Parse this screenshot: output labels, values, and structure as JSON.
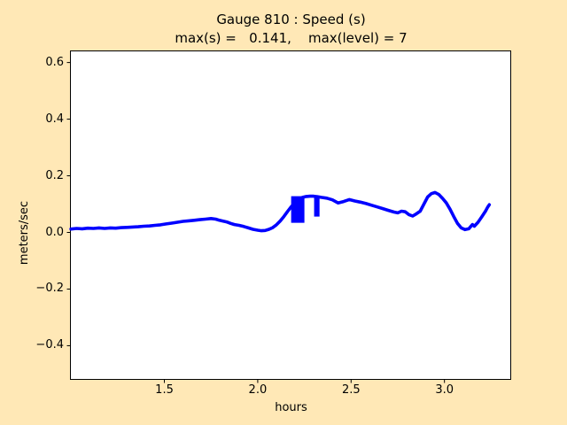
{
  "colors": {
    "figure_background": "#ffe8b6",
    "plot_background": "#ffffff",
    "line": "#0000ff",
    "frame": "#000000",
    "text": "#000000"
  },
  "chart_data": {
    "type": "line",
    "title": "Gauge 810 : Speed (s)",
    "subtitle": "max(s) =   0.141,    max(level) = 7",
    "max_s": 0.141,
    "max_level": 7,
    "xlabel": "hours",
    "ylabel": "meters/sec",
    "xlim": [
      0.997,
      3.355
    ],
    "ylim": [
      -0.519,
      0.641
    ],
    "xticks": [
      1.5,
      2.0,
      2.5,
      3.0
    ],
    "xtick_labels": [
      "1.5",
      "2.0",
      "2.5",
      "3.0"
    ],
    "yticks": [
      0.6,
      0.4,
      0.2,
      0.0,
      -0.2,
      -0.4
    ],
    "ytick_labels": [
      "0.6",
      "0.4",
      "0.2",
      "0.0",
      "−0.2",
      "−0.4"
    ],
    "grid": false,
    "legend": null,
    "line_color": "#0000ff",
    "plot_background": "#ffffff",
    "series": [
      {
        "name": "speed",
        "points": [
          [
            1.0,
            0.012
          ],
          [
            1.03,
            0.014
          ],
          [
            1.06,
            0.013
          ],
          [
            1.09,
            0.015
          ],
          [
            1.12,
            0.014
          ],
          [
            1.15,
            0.016
          ],
          [
            1.18,
            0.014
          ],
          [
            1.21,
            0.016
          ],
          [
            1.24,
            0.015
          ],
          [
            1.27,
            0.017
          ],
          [
            1.3,
            0.018
          ],
          [
            1.33,
            0.019
          ],
          [
            1.36,
            0.02
          ],
          [
            1.39,
            0.022
          ],
          [
            1.42,
            0.023
          ],
          [
            1.45,
            0.025
          ],
          [
            1.48,
            0.027
          ],
          [
            1.51,
            0.03
          ],
          [
            1.54,
            0.033
          ],
          [
            1.57,
            0.036
          ],
          [
            1.6,
            0.039
          ],
          [
            1.63,
            0.041
          ],
          [
            1.66,
            0.043
          ],
          [
            1.69,
            0.045
          ],
          [
            1.72,
            0.047
          ],
          [
            1.75,
            0.049
          ],
          [
            1.775,
            0.047
          ],
          [
            1.795,
            0.043
          ],
          [
            1.815,
            0.04
          ],
          [
            1.835,
            0.037
          ],
          [
            1.855,
            0.032
          ],
          [
            1.875,
            0.028
          ],
          [
            1.9,
            0.025
          ],
          [
            1.925,
            0.021
          ],
          [
            1.95,
            0.016
          ],
          [
            1.975,
            0.011
          ],
          [
            2.0,
            0.008
          ],
          [
            2.02,
            0.006
          ],
          [
            2.04,
            0.007
          ],
          [
            2.06,
            0.011
          ],
          [
            2.08,
            0.017
          ],
          [
            2.1,
            0.027
          ],
          [
            2.12,
            0.04
          ],
          [
            2.14,
            0.056
          ],
          [
            2.16,
            0.074
          ],
          [
            2.18,
            0.091
          ],
          [
            2.2,
            0.106
          ],
          [
            2.22,
            0.117
          ],
          [
            2.24,
            0.124
          ],
          [
            2.26,
            0.127
          ],
          [
            2.28,
            0.128
          ],
          [
            2.3,
            0.128
          ],
          [
            2.32,
            0.126
          ],
          [
            2.34,
            0.124
          ],
          [
            2.37,
            0.121
          ],
          [
            2.4,
            0.115
          ],
          [
            2.43,
            0.104
          ],
          [
            2.46,
            0.109
          ],
          [
            2.49,
            0.116
          ],
          [
            2.52,
            0.111
          ],
          [
            2.55,
            0.107
          ],
          [
            2.58,
            0.102
          ],
          [
            2.61,
            0.096
          ],
          [
            2.64,
            0.09
          ],
          [
            2.67,
            0.084
          ],
          [
            2.7,
            0.078
          ],
          [
            2.73,
            0.072
          ],
          [
            2.75,
            0.069
          ],
          [
            2.77,
            0.075
          ],
          [
            2.79,
            0.073
          ],
          [
            2.81,
            0.063
          ],
          [
            2.83,
            0.058
          ],
          [
            2.85,
            0.066
          ],
          [
            2.87,
            0.075
          ],
          [
            2.89,
            0.1
          ],
          [
            2.91,
            0.125
          ],
          [
            2.93,
            0.137
          ],
          [
            2.95,
            0.141
          ],
          [
            2.97,
            0.134
          ],
          [
            2.99,
            0.12
          ],
          [
            3.01,
            0.104
          ],
          [
            3.03,
            0.082
          ],
          [
            3.05,
            0.056
          ],
          [
            3.07,
            0.032
          ],
          [
            3.09,
            0.016
          ],
          [
            3.11,
            0.01
          ],
          [
            3.13,
            0.013
          ],
          [
            3.15,
            0.028
          ],
          [
            3.16,
            0.022
          ],
          [
            3.18,
            0.036
          ],
          [
            3.2,
            0.055
          ],
          [
            3.22,
            0.075
          ],
          [
            3.232,
            0.09
          ],
          [
            3.24,
            0.098
          ]
        ]
      }
    ],
    "dropouts": [
      {
        "x0": 2.179,
        "x1": 2.25,
        "y_top": 0.128,
        "y_bottom": 0.034
      },
      {
        "x0": 2.302,
        "x1": 2.331,
        "y_top": 0.124,
        "y_bottom": 0.056
      }
    ]
  }
}
